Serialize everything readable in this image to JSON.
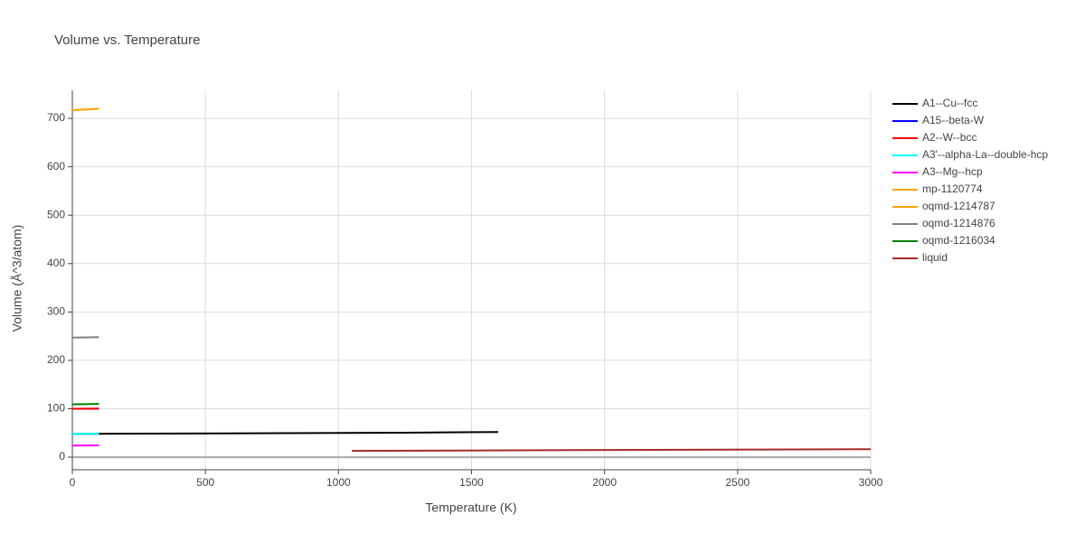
{
  "chart_data": {
    "type": "line",
    "title": "Volume vs. Temperature",
    "x_label": "Temperature (K)",
    "y_label": "Volume (Å^3/atom)",
    "xlim": [
      0,
      3000
    ],
    "ylim": [
      -26,
      758
    ],
    "xticks": [
      0,
      500,
      1000,
      1500,
      2000,
      2500,
      3000
    ],
    "yticks": [
      0,
      100,
      200,
      300,
      400,
      500,
      600,
      700
    ],
    "grid": true,
    "legend": "right",
    "series": [
      {
        "name": "A1--Cu--fcc",
        "color": "#000000",
        "x": [
          0,
          1250,
          1600
        ],
        "values": [
          48,
          50.5,
          52
        ]
      },
      {
        "name": "A15--beta-W",
        "color": "#0000ff",
        "x": [
          0,
          100
        ],
        "values": [
          100,
          100
        ]
      },
      {
        "name": "A2--W--bcc",
        "color": "#ff0000",
        "x": [
          0,
          100
        ],
        "values": [
          100,
          100.5
        ]
      },
      {
        "name": "A3'--alpha-La--double-hcp",
        "color": "#00ffff",
        "x": [
          0,
          100
        ],
        "values": [
          48,
          48.5
        ]
      },
      {
        "name": "A3--Mg--hcp",
        "color": "#ff00ff",
        "x": [
          0,
          100
        ],
        "values": [
          24,
          24.5
        ]
      },
      {
        "name": "mp-1120774",
        "color": "#ffa500",
        "x": [
          0,
          100
        ],
        "values": [
          717,
          720
        ]
      },
      {
        "name": "oqmd-1214787",
        "color": "#ffa500",
        "x": [
          0,
          100
        ],
        "values": [
          717,
          720
        ]
      },
      {
        "name": "oqmd-1214876",
        "color": "#808080",
        "x": [
          0,
          100
        ],
        "values": [
          247,
          248
        ]
      },
      {
        "name": "oqmd-1216034",
        "color": "#008000",
        "x": [
          0,
          100
        ],
        "values": [
          109,
          110
        ]
      },
      {
        "name": "liquid",
        "color": "#a52a2a",
        "x": [
          1050,
          3000
        ],
        "values": [
          13,
          16.5
        ]
      }
    ]
  }
}
